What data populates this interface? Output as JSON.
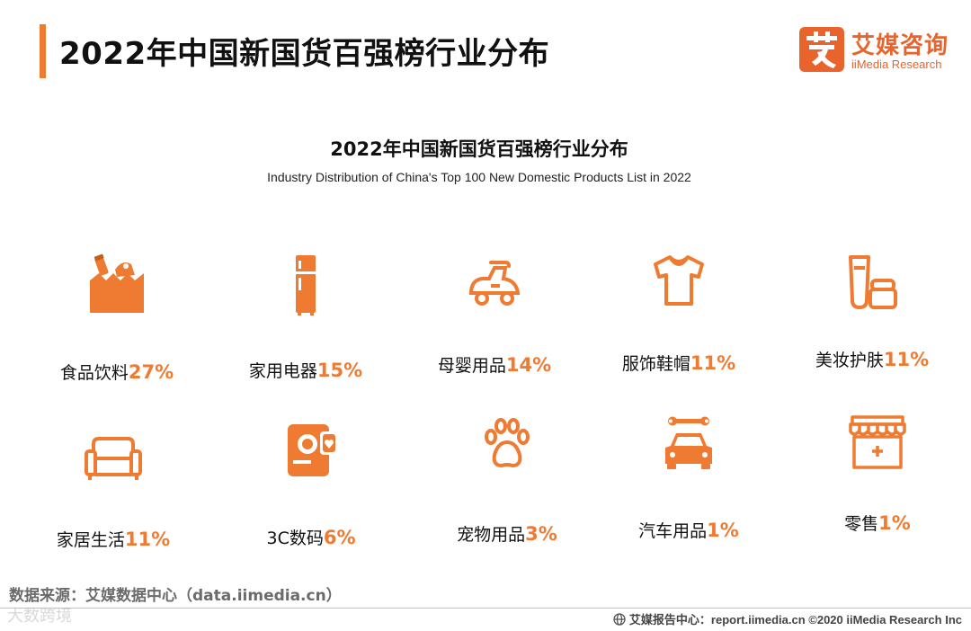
{
  "header": {
    "title": "2022年中国新国货百强榜行业分布",
    "logo_cn": "艾媒咨询",
    "logo_en": "iiMedia Research",
    "accent_color": "#ee7b31"
  },
  "chart_data": {
    "type": "table",
    "title": "2022年中国新国货百强榜行业分布",
    "subtitle": "Industry Distribution of China's Top 100 New Domestic Products List in 2022",
    "items": [
      {
        "category": "食品饮料",
        "value": 27,
        "pct_text": "27%",
        "icon": "grocery-bag-icon"
      },
      {
        "category": "家用电器",
        "value": 15,
        "pct_text": "15%",
        "icon": "refrigerator-icon"
      },
      {
        "category": "母婴用品",
        "value": 14,
        "pct_text": "14%",
        "icon": "toy-car-icon"
      },
      {
        "category": "服饰鞋帽",
        "value": 11,
        "pct_text": "11%",
        "icon": "tshirt-icon"
      },
      {
        "category": "美妆护肤",
        "value": 11,
        "pct_text": "11%",
        "icon": "cosmetics-icon"
      },
      {
        "category": "家居生活",
        "value": 11,
        "pct_text": "11%",
        "icon": "sofa-icon"
      },
      {
        "category": "3C数码",
        "value": 6,
        "pct_text": "6%",
        "icon": "camera-icon"
      },
      {
        "category": "宠物用品",
        "value": 3,
        "pct_text": "3%",
        "icon": "paw-icon"
      },
      {
        "category": "汽车用品",
        "value": 1,
        "pct_text": "1%",
        "icon": "car-wrench-icon"
      },
      {
        "category": "零售",
        "value": 1,
        "pct_text": "1%",
        "icon": "storefront-icon"
      }
    ]
  },
  "source": "数据来源：艾媒数据中心（data.iimedia.cn）",
  "watermark": "大数跨境",
  "footer": "艾媒报告中心：report.iimedia.cn   ©2020  iiMedia Research  Inc"
}
